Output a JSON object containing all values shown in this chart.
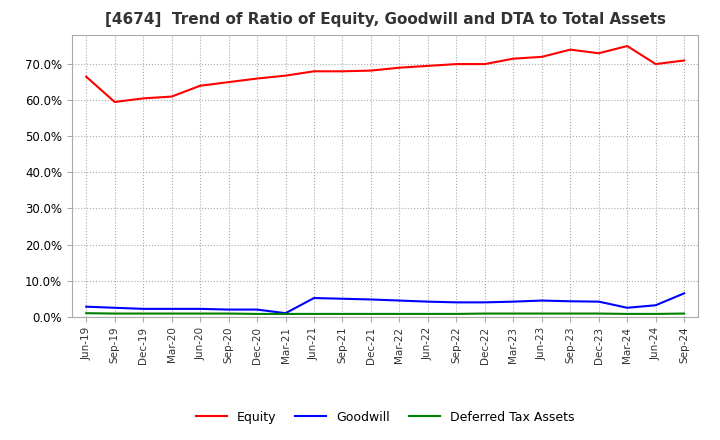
{
  "title": "[4674]  Trend of Ratio of Equity, Goodwill and DTA to Total Assets",
  "title_fontsize": 11,
  "x_labels": [
    "Jun-19",
    "Sep-19",
    "Dec-19",
    "Mar-20",
    "Jun-20",
    "Sep-20",
    "Dec-20",
    "Mar-21",
    "Jun-21",
    "Sep-21",
    "Dec-21",
    "Mar-22",
    "Jun-22",
    "Sep-22",
    "Dec-22",
    "Mar-23",
    "Jun-23",
    "Sep-23",
    "Dec-23",
    "Mar-24",
    "Jun-24",
    "Sep-24"
  ],
  "equity": [
    0.665,
    0.595,
    0.605,
    0.61,
    0.64,
    0.65,
    0.66,
    0.668,
    0.68,
    0.68,
    0.682,
    0.69,
    0.695,
    0.7,
    0.7,
    0.715,
    0.72,
    0.74,
    0.73,
    0.75,
    0.7,
    0.71
  ],
  "goodwill": [
    0.028,
    0.025,
    0.022,
    0.022,
    0.022,
    0.02,
    0.02,
    0.01,
    0.052,
    0.05,
    0.048,
    0.045,
    0.042,
    0.04,
    0.04,
    0.042,
    0.045,
    0.043,
    0.042,
    0.025,
    0.032,
    0.065
  ],
  "dta": [
    0.01,
    0.009,
    0.009,
    0.009,
    0.009,
    0.009,
    0.008,
    0.008,
    0.008,
    0.008,
    0.008,
    0.008,
    0.008,
    0.008,
    0.009,
    0.009,
    0.009,
    0.009,
    0.009,
    0.008,
    0.008,
    0.009
  ],
  "equity_color": "#ff0000",
  "goodwill_color": "#0000ff",
  "dta_color": "#008000",
  "ylim": [
    0.0,
    0.78
  ],
  "yticks": [
    0.0,
    0.1,
    0.2,
    0.3,
    0.4,
    0.5,
    0.6,
    0.7
  ],
  "grid_color": "#aaaaaa",
  "bg_color": "#ffffff",
  "legend_labels": [
    "Equity",
    "Goodwill",
    "Deferred Tax Assets"
  ]
}
